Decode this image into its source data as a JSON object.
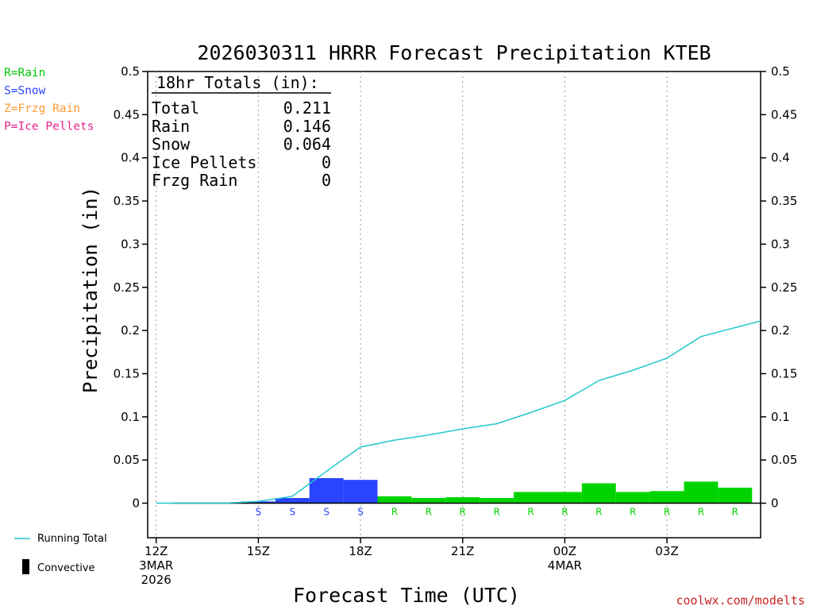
{
  "chart_data": {
    "type": "bar",
    "title": "2026030311 HRRR Forecast Precipitation KTEB",
    "ylabel": "Precipitation (in)",
    "xlabel": "Forecast Time (UTC)",
    "ylim": [
      -0.04,
      0.5
    ],
    "yticks": [
      0,
      0.05,
      0.1,
      0.15,
      0.2,
      0.25,
      0.3,
      0.35,
      0.4,
      0.45,
      0.5
    ],
    "ytick_labels": [
      "0",
      "0.05",
      "0.1",
      "0.15",
      "0.2",
      "0.25",
      "0.3",
      "0.35",
      "0.4",
      "0.45",
      "0.5"
    ],
    "xlim": [
      -0.25,
      17.75
    ],
    "xticks": [
      {
        "hour": 0,
        "lines": [
          "12Z",
          "3MAR",
          "2026"
        ]
      },
      {
        "hour": 3,
        "lines": [
          "15Z"
        ]
      },
      {
        "hour": 6,
        "lines": [
          "18Z"
        ]
      },
      {
        "hour": 9,
        "lines": [
          "21Z"
        ]
      },
      {
        "hour": 12,
        "lines": [
          "00Z",
          "4MAR"
        ]
      },
      {
        "hour": 15,
        "lines": [
          "03Z"
        ]
      }
    ],
    "bars": [
      {
        "hour": 1,
        "value": 0.0,
        "type": "rain"
      },
      {
        "hour": 2,
        "value": 0.0,
        "type": "rain"
      },
      {
        "hour": 3,
        "value": 0.002,
        "type": "snow"
      },
      {
        "hour": 4,
        "value": 0.006,
        "type": "snow"
      },
      {
        "hour": 5,
        "value": 0.029,
        "type": "snow"
      },
      {
        "hour": 6,
        "value": 0.027,
        "type": "snow"
      },
      {
        "hour": 7,
        "value": 0.008,
        "type": "rain"
      },
      {
        "hour": 8,
        "value": 0.006,
        "type": "rain"
      },
      {
        "hour": 9,
        "value": 0.007,
        "type": "rain"
      },
      {
        "hour": 10,
        "value": 0.006,
        "type": "rain"
      },
      {
        "hour": 11,
        "value": 0.013,
        "type": "rain"
      },
      {
        "hour": 12,
        "value": 0.013,
        "type": "rain"
      },
      {
        "hour": 13,
        "value": 0.023,
        "type": "rain"
      },
      {
        "hour": 14,
        "value": 0.013,
        "type": "rain"
      },
      {
        "hour": 15,
        "value": 0.014,
        "type": "rain"
      },
      {
        "hour": 16,
        "value": 0.025,
        "type": "rain"
      },
      {
        "hour": 17,
        "value": 0.018,
        "type": "rain"
      }
    ],
    "running_total": {
      "x": [
        0,
        1,
        2,
        3,
        4,
        5,
        6,
        7,
        8,
        9,
        10,
        11,
        12,
        13,
        14,
        15,
        16,
        17.75
      ],
      "y": [
        0.0,
        0.0,
        0.0,
        0.002,
        0.008,
        0.037,
        0.065,
        0.073,
        0.079,
        0.086,
        0.092,
        0.105,
        0.119,
        0.142,
        0.154,
        0.168,
        0.193,
        0.211
      ]
    },
    "ptype_letters": [
      {
        "hour": 3,
        "letter": "S"
      },
      {
        "hour": 4,
        "letter": "S"
      },
      {
        "hour": 5,
        "letter": "S"
      },
      {
        "hour": 6,
        "letter": "S"
      },
      {
        "hour": 7,
        "letter": "R"
      },
      {
        "hour": 8,
        "letter": "R"
      },
      {
        "hour": 9,
        "letter": "R"
      },
      {
        "hour": 10,
        "letter": "R"
      },
      {
        "hour": 11,
        "letter": "R"
      },
      {
        "hour": 12,
        "letter": "R"
      },
      {
        "hour": 13,
        "letter": "R"
      },
      {
        "hour": 14,
        "letter": "R"
      },
      {
        "hour": 15,
        "letter": "R"
      },
      {
        "hour": 16,
        "letter": "R"
      },
      {
        "hour": 17,
        "letter": "R"
      }
    ],
    "ptype_legend": [
      {
        "label": "R=Rain",
        "color": "#00c800"
      },
      {
        "label": "S=Snow",
        "color": "#2a44ff"
      },
      {
        "label": "Z=Frzg Rain",
        "color": "#ff9933"
      },
      {
        "label": "P=Ice Pellets",
        "color": "#e6228c"
      }
    ],
    "totals_box": {
      "header": "18hr Totals (in):",
      "rows": [
        {
          "label": "Total",
          "value": "0.211"
        },
        {
          "label": "Rain",
          "value": "0.146"
        },
        {
          "label": "Snow",
          "value": "0.064"
        },
        {
          "label": "Ice Pellets",
          "value": "0"
        },
        {
          "label": "Frzg Rain",
          "value": "0"
        }
      ]
    },
    "series_legend": {
      "running_total": "Running Total",
      "convective": "Convective"
    },
    "colors": {
      "rain": "#00d400",
      "snow": "#2a44ff",
      "running_total": "#22c8cc",
      "credit": "#cc2222"
    },
    "credit": "coolwx.com/modelts"
  }
}
